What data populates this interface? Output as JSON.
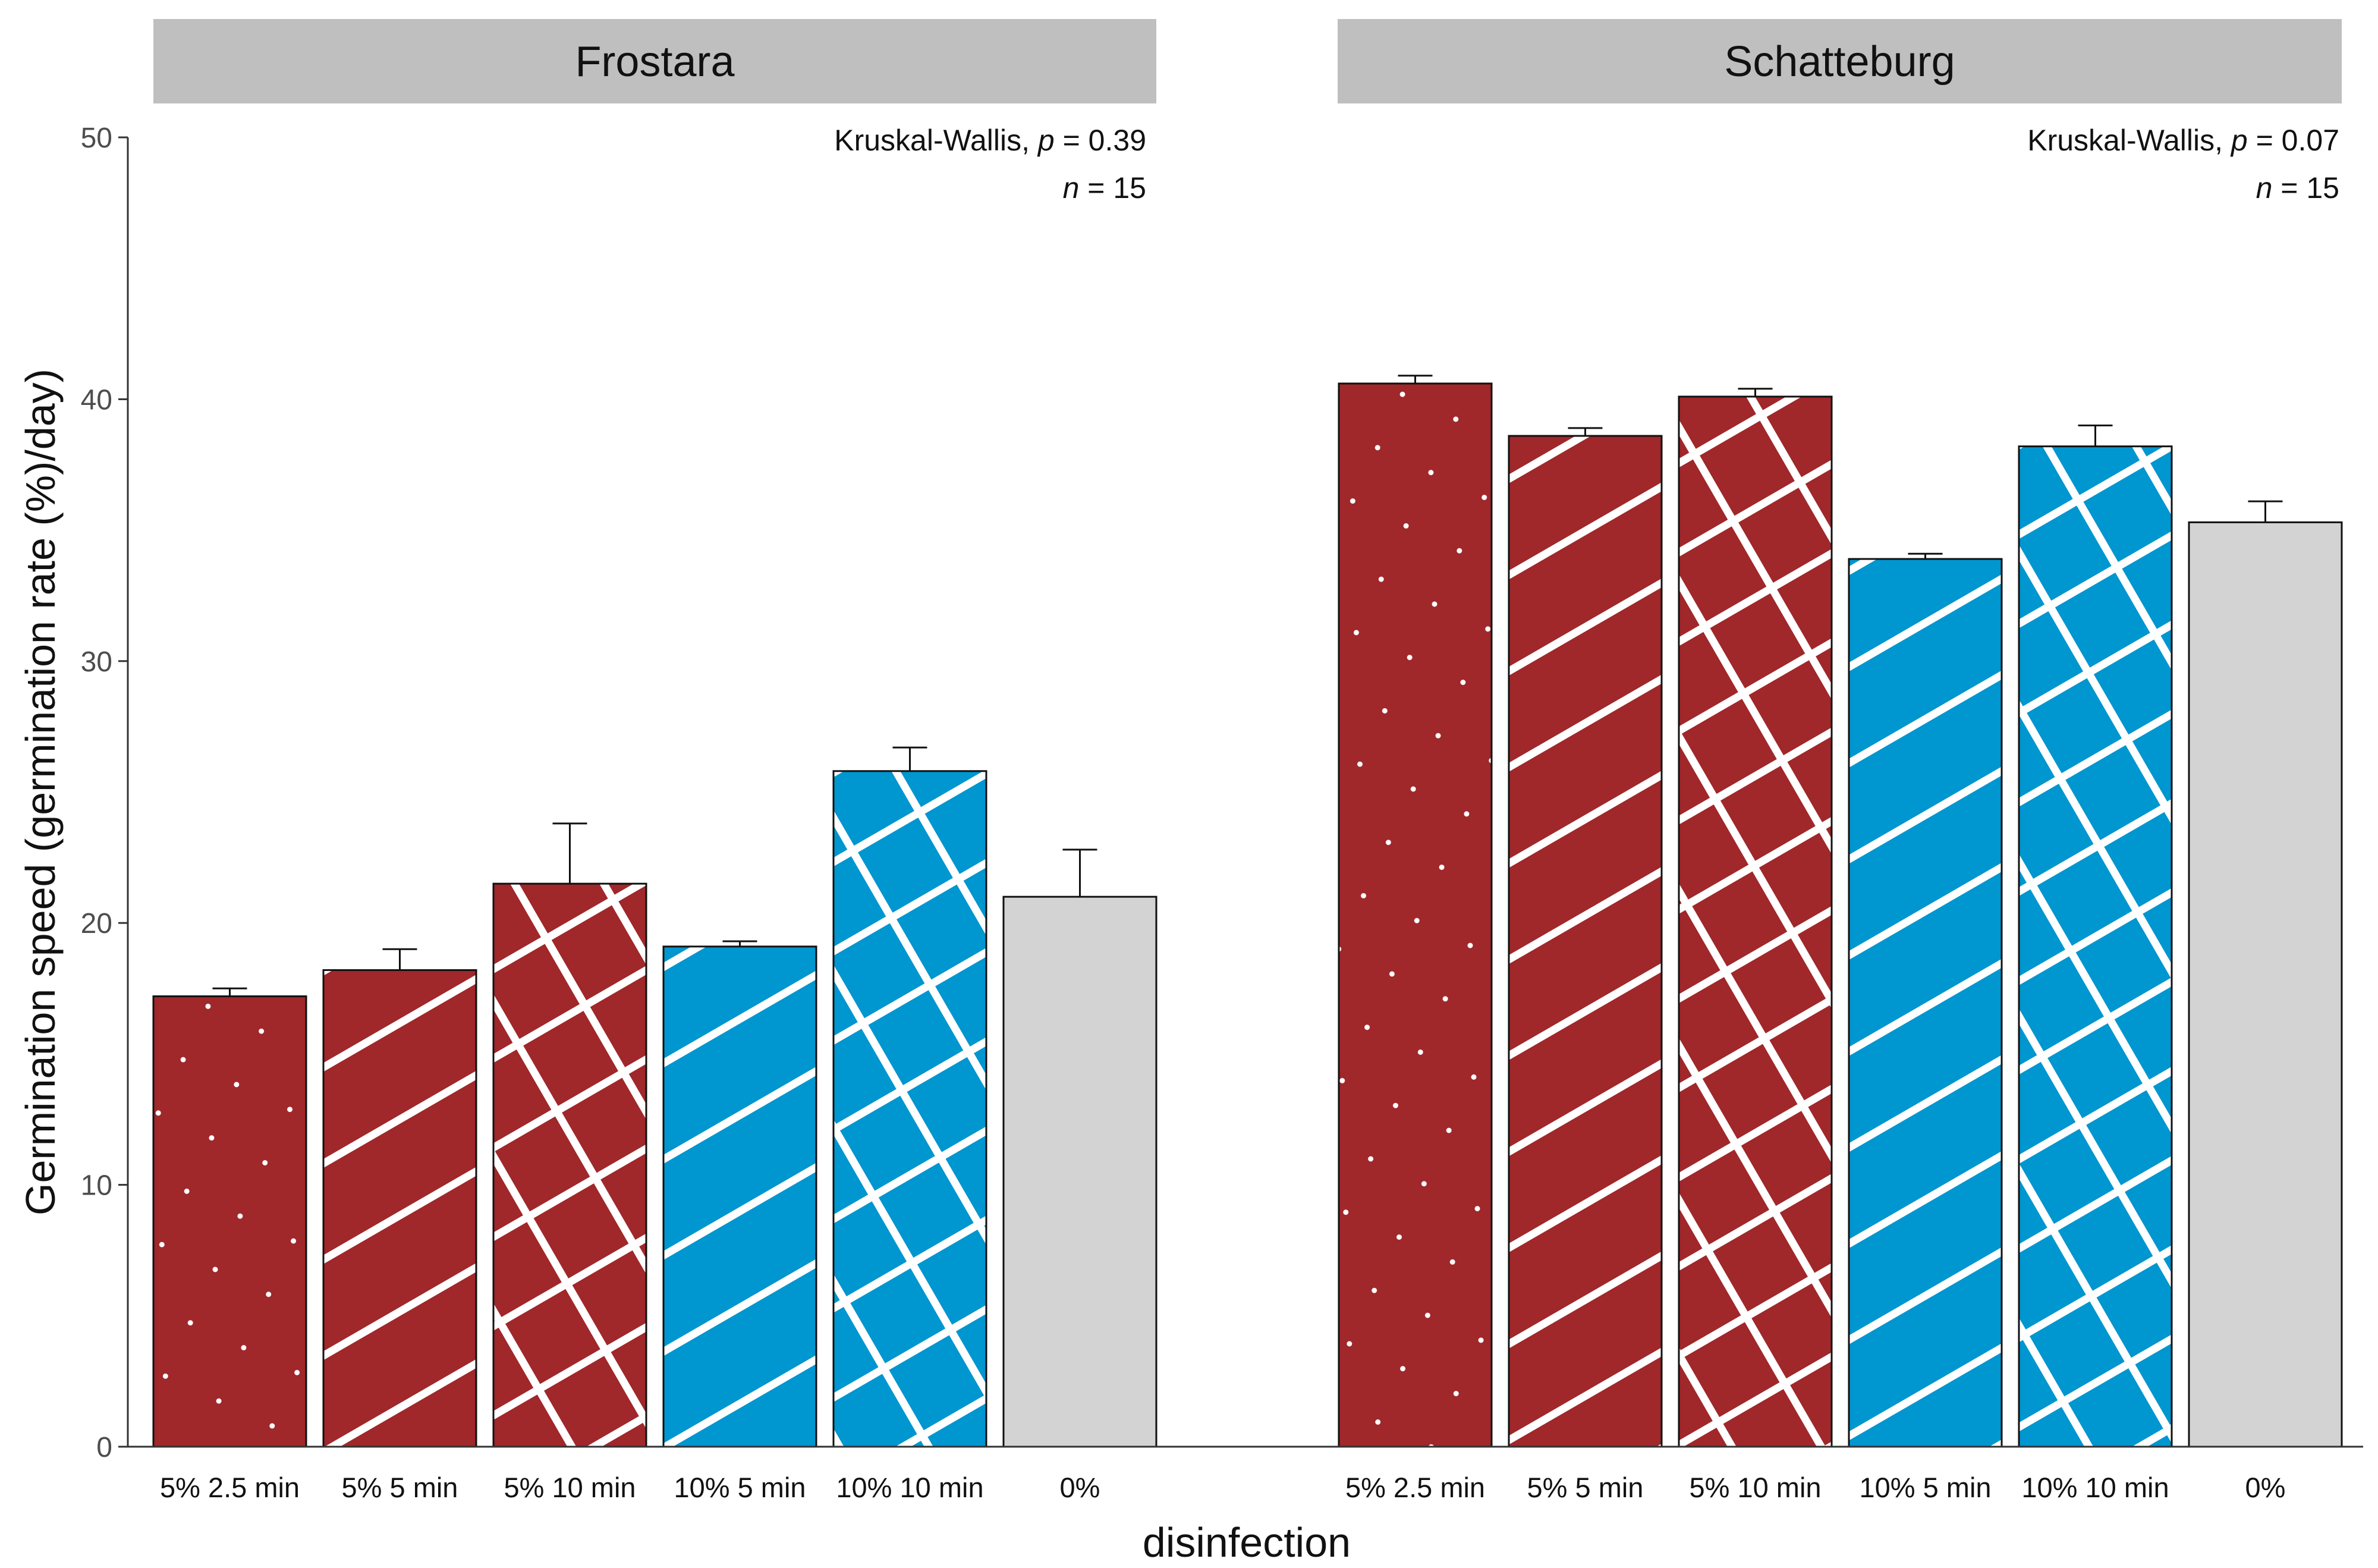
{
  "chart_data": {
    "type": "bar",
    "xlabel": "disinfection",
    "ylabel": "Germination speed (germination rate (%)/day)",
    "ylim": [
      0,
      50
    ],
    "yticks": [
      0,
      10,
      20,
      30,
      40,
      50
    ],
    "categories": [
      "5% 2.5 min",
      "5% 5 min",
      "5% 10 min",
      "10% 5 min",
      "10% 10 min",
      "0%"
    ],
    "colors": {
      "5%": "#A0272A",
      "10%": "#0096CF",
      "0%": "#D3D3D3",
      "outline": "#111111",
      "strip": "#BFBFBF",
      "pattern": "#ffffff"
    },
    "patterns": [
      "dots",
      "stripes",
      "crosshatch",
      "stripes",
      "crosshatch",
      "none"
    ],
    "fills": [
      "5%",
      "5%",
      "5%",
      "10%",
      "10%",
      "0%"
    ],
    "panels": [
      {
        "name": "Frostara",
        "stat_prefix": "Kruskal-Wallis, ",
        "stat_p_label": "p",
        "stat_p_value": " = 0.39",
        "n_label": "n",
        "n_value": " = 15",
        "values": [
          17.2,
          18.2,
          21.5,
          19.1,
          25.8,
          21.0
        ],
        "errors": [
          0.3,
          0.8,
          2.3,
          0.2,
          0.9,
          1.8
        ]
      },
      {
        "name": "Schatteburg",
        "stat_prefix": "Kruskal-Wallis, ",
        "stat_p_label": "p",
        "stat_p_value": " = 0.07",
        "n_label": "n",
        "n_value": " = 15",
        "values": [
          40.6,
          38.6,
          40.1,
          33.9,
          38.2,
          35.3
        ],
        "errors": [
          0.3,
          0.3,
          0.3,
          0.2,
          0.8,
          0.8
        ]
      }
    ]
  }
}
